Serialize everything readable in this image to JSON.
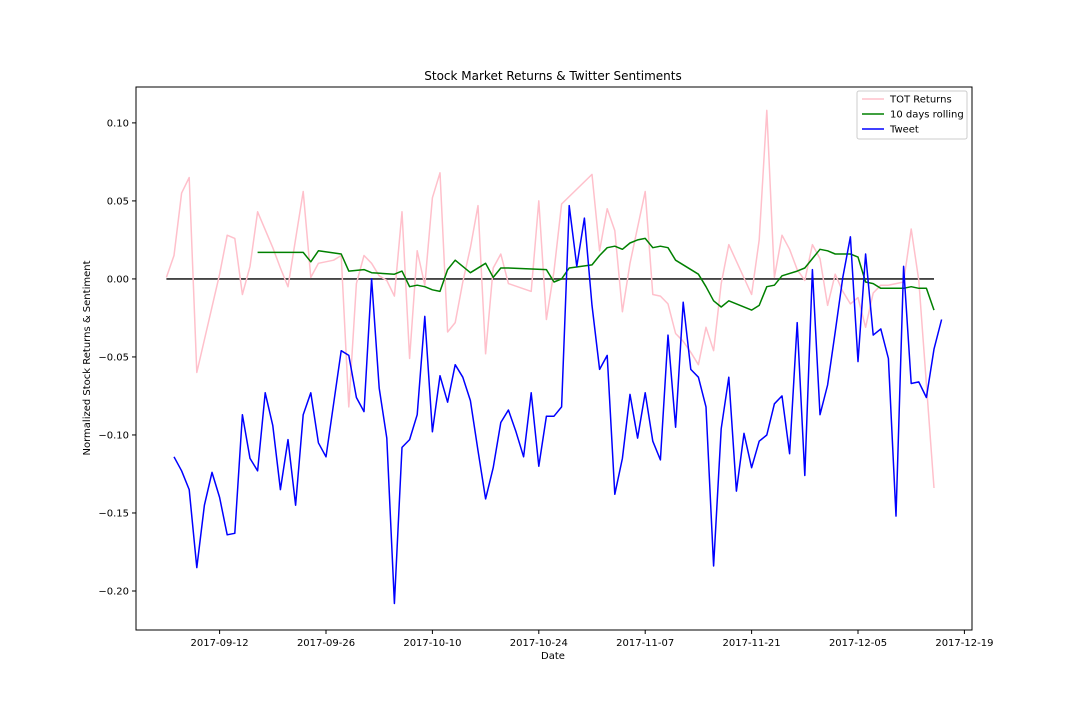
{
  "chart_data": {
    "type": "line",
    "title": "Stock Market Returns & Twitter Sentiments",
    "xlabel": "Date",
    "ylabel": "Normalized Stock Returns & Sentiment",
    "xlim": [
      "2017-09-01",
      "2017-12-20"
    ],
    "ylim": [
      -0.225,
      0.123
    ],
    "x_tick_labels": [
      "2017-09-12",
      "2017-09-26",
      "2017-10-10",
      "2017-10-24",
      "2017-11-07",
      "2017-11-21",
      "2017-12-05",
      "2017-12-19"
    ],
    "y_tick_values": [
      0.1,
      0.05,
      0.0,
      -0.05,
      -0.1,
      -0.15,
      -0.2
    ],
    "y_tick_labels": [
      "0.10",
      "0.05",
      "0.00",
      "−0.05",
      "−0.10",
      "−0.15",
      "−0.20"
    ],
    "grid": false,
    "legend_position": "top-right",
    "series": [
      {
        "name": "TOT Returns",
        "color": "#ffc0cb",
        "points": [
          [
            "2017-09-05",
            0.001
          ],
          [
            "2017-09-06",
            0.015
          ],
          [
            "2017-09-07",
            0.055
          ],
          [
            "2017-09-08",
            0.065
          ],
          [
            "2017-09-09",
            -0.06
          ],
          [
            "2017-09-12",
            0.003
          ],
          [
            "2017-09-13",
            0.028
          ],
          [
            "2017-09-14",
            0.026
          ],
          [
            "2017-09-15",
            -0.01
          ],
          [
            "2017-09-16",
            0.008
          ],
          [
            "2017-09-17",
            0.043
          ],
          [
            "2017-09-19",
            0.02
          ],
          [
            "2017-09-20",
            0.007
          ],
          [
            "2017-09-21",
            -0.005
          ],
          [
            "2017-09-23",
            0.056
          ],
          [
            "2017-09-24",
            0.001
          ],
          [
            "2017-09-25",
            0.01
          ],
          [
            "2017-09-27",
            0.012
          ],
          [
            "2017-09-28",
            0.015
          ],
          [
            "2017-09-29",
            -0.082
          ],
          [
            "2017-09-30",
            -0.003
          ],
          [
            "2017-10-01",
            0.015
          ],
          [
            "2017-10-02",
            0.01
          ],
          [
            "2017-10-03",
            0.002
          ],
          [
            "2017-10-04",
            -0.001
          ],
          [
            "2017-10-05",
            -0.011
          ],
          [
            "2017-10-06",
            0.043
          ],
          [
            "2017-10-07",
            -0.051
          ],
          [
            "2017-10-08",
            0.018
          ],
          [
            "2017-10-09",
            -0.004
          ],
          [
            "2017-10-10",
            0.052
          ],
          [
            "2017-10-11",
            0.068
          ],
          [
            "2017-10-12",
            -0.034
          ],
          [
            "2017-10-13",
            -0.028
          ],
          [
            "2017-10-14",
            -0.002
          ],
          [
            "2017-10-15",
            0.02
          ],
          [
            "2017-10-16",
            0.047
          ],
          [
            "2017-10-17",
            -0.048
          ],
          [
            "2017-10-18",
            0.007
          ],
          [
            "2017-10-19",
            0.016
          ],
          [
            "2017-10-20",
            -0.003
          ],
          [
            "2017-10-23",
            -0.008
          ],
          [
            "2017-10-24",
            0.05
          ],
          [
            "2017-10-25",
            -0.026
          ],
          [
            "2017-10-26",
            0.005
          ],
          [
            "2017-10-27",
            0.048
          ],
          [
            "2017-10-31",
            0.067
          ],
          [
            "2017-11-01",
            0.018
          ],
          [
            "2017-11-02",
            0.045
          ],
          [
            "2017-11-03",
            0.031
          ],
          [
            "2017-11-04",
            -0.021
          ],
          [
            "2017-11-05",
            0.01
          ],
          [
            "2017-11-07",
            0.056
          ],
          [
            "2017-11-08",
            -0.01
          ],
          [
            "2017-11-09",
            -0.011
          ],
          [
            "2017-11-10",
            -0.016
          ],
          [
            "2017-11-11",
            -0.035
          ],
          [
            "2017-11-12",
            -0.04
          ],
          [
            "2017-11-13",
            -0.047
          ],
          [
            "2017-11-14",
            -0.055
          ],
          [
            "2017-11-15",
            -0.031
          ],
          [
            "2017-11-16",
            -0.046
          ],
          [
            "2017-11-17",
            -0.003
          ],
          [
            "2017-11-18",
            0.022
          ],
          [
            "2017-11-21",
            -0.01
          ],
          [
            "2017-11-22",
            0.025
          ],
          [
            "2017-11-23",
            0.108
          ],
          [
            "2017-11-24",
            0.001
          ],
          [
            "2017-11-25",
            0.028
          ],
          [
            "2017-11-26",
            0.019
          ],
          [
            "2017-11-27",
            0.006
          ],
          [
            "2017-11-28",
            -0.001
          ],
          [
            "2017-11-29",
            0.022
          ],
          [
            "2017-11-30",
            0.013
          ],
          [
            "2017-12-01",
            -0.017
          ],
          [
            "2017-12-02",
            0.003
          ],
          [
            "2017-12-03",
            -0.008
          ],
          [
            "2017-12-04",
            -0.016
          ],
          [
            "2017-12-05",
            -0.012
          ],
          [
            "2017-12-06",
            -0.031
          ],
          [
            "2017-12-07",
            -0.009
          ],
          [
            "2017-12-08",
            -0.004
          ],
          [
            "2017-12-09",
            -0.004
          ],
          [
            "2017-12-10",
            -0.003
          ],
          [
            "2017-12-11",
            -0.002
          ],
          [
            "2017-12-12",
            0.032
          ],
          [
            "2017-12-13",
            -0.001
          ],
          [
            "2017-12-15",
            -0.134
          ]
        ]
      },
      {
        "name": "10 days rolling",
        "color": "#008000",
        "points": [
          [
            "2017-09-17",
            0.017
          ],
          [
            "2017-09-19",
            0.017
          ],
          [
            "2017-09-20",
            0.017
          ],
          [
            "2017-09-21",
            0.017
          ],
          [
            "2017-09-23",
            0.017
          ],
          [
            "2017-09-24",
            0.011
          ],
          [
            "2017-09-25",
            0.018
          ],
          [
            "2017-09-28",
            0.016
          ],
          [
            "2017-09-29",
            0.005
          ],
          [
            "2017-10-01",
            0.006
          ],
          [
            "2017-10-02",
            0.004
          ],
          [
            "2017-10-05",
            0.003
          ],
          [
            "2017-10-06",
            0.005
          ],
          [
            "2017-10-07",
            -0.005
          ],
          [
            "2017-10-08",
            -0.004
          ],
          [
            "2017-10-09",
            -0.005
          ],
          [
            "2017-10-10",
            -0.007
          ],
          [
            "2017-10-11",
            -0.008
          ],
          [
            "2017-10-12",
            0.006
          ],
          [
            "2017-10-13",
            0.012
          ],
          [
            "2017-10-14",
            0.008
          ],
          [
            "2017-10-15",
            0.004
          ],
          [
            "2017-10-17",
            0.01
          ],
          [
            "2017-10-18",
            0.001
          ],
          [
            "2017-10-19",
            0.007
          ],
          [
            "2017-10-20",
            0.007
          ],
          [
            "2017-10-25",
            0.006
          ],
          [
            "2017-10-26",
            -0.002
          ],
          [
            "2017-10-27",
            0.0
          ],
          [
            "2017-10-28",
            0.007
          ],
          [
            "2017-10-31",
            0.009
          ],
          [
            "2017-11-01",
            0.015
          ],
          [
            "2017-11-02",
            0.02
          ],
          [
            "2017-11-03",
            0.021
          ],
          [
            "2017-11-04",
            0.019
          ],
          [
            "2017-11-05",
            0.023
          ],
          [
            "2017-11-06",
            0.025
          ],
          [
            "2017-11-07",
            0.026
          ],
          [
            "2017-11-08",
            0.02
          ],
          [
            "2017-11-09",
            0.021
          ],
          [
            "2017-11-10",
            0.02
          ],
          [
            "2017-11-11",
            0.012
          ],
          [
            "2017-11-14",
            0.003
          ],
          [
            "2017-11-15",
            -0.005
          ],
          [
            "2017-11-16",
            -0.014
          ],
          [
            "2017-11-17",
            -0.018
          ],
          [
            "2017-11-18",
            -0.014
          ],
          [
            "2017-11-21",
            -0.02
          ],
          [
            "2017-11-22",
            -0.017
          ],
          [
            "2017-11-23",
            -0.005
          ],
          [
            "2017-11-24",
            -0.004
          ],
          [
            "2017-11-25",
            0.002
          ],
          [
            "2017-11-27",
            0.005
          ],
          [
            "2017-11-28",
            0.007
          ],
          [
            "2017-11-29",
            0.013
          ],
          [
            "2017-11-30",
            0.019
          ],
          [
            "2017-12-01",
            0.018
          ],
          [
            "2017-12-02",
            0.016
          ],
          [
            "2017-12-04",
            0.016
          ],
          [
            "2017-12-05",
            0.014
          ],
          [
            "2017-12-06",
            -0.002
          ],
          [
            "2017-12-07",
            -0.003
          ],
          [
            "2017-12-08",
            -0.006
          ],
          [
            "2017-12-10",
            -0.006
          ],
          [
            "2017-12-11",
            -0.006
          ],
          [
            "2017-12-12",
            -0.005
          ],
          [
            "2017-12-13",
            -0.006
          ],
          [
            "2017-12-14",
            -0.006
          ],
          [
            "2017-12-15",
            -0.02
          ]
        ]
      },
      {
        "name": "Tweet",
        "color": "#0000ff",
        "points": [
          [
            "2017-09-06",
            -0.114
          ],
          [
            "2017-09-07",
            -0.123
          ],
          [
            "2017-09-08",
            -0.135
          ],
          [
            "2017-09-09",
            -0.185
          ],
          [
            "2017-09-10",
            -0.145
          ],
          [
            "2017-09-11",
            -0.124
          ],
          [
            "2017-09-12",
            -0.14
          ],
          [
            "2017-09-13",
            -0.164
          ],
          [
            "2017-09-14",
            -0.163
          ],
          [
            "2017-09-15",
            -0.087
          ],
          [
            "2017-09-16",
            -0.115
          ],
          [
            "2017-09-17",
            -0.123
          ],
          [
            "2017-09-18",
            -0.073
          ],
          [
            "2017-09-19",
            -0.094
          ],
          [
            "2017-09-20",
            -0.135
          ],
          [
            "2017-09-21",
            -0.103
          ],
          [
            "2017-09-22",
            -0.145
          ],
          [
            "2017-09-23",
            -0.087
          ],
          [
            "2017-09-24",
            -0.073
          ],
          [
            "2017-09-25",
            -0.105
          ],
          [
            "2017-09-26",
            -0.114
          ],
          [
            "2017-09-27",
            -0.08
          ],
          [
            "2017-09-28",
            -0.046
          ],
          [
            "2017-09-29",
            -0.049
          ],
          [
            "2017-09-30",
            -0.076
          ],
          [
            "2017-10-01",
            -0.085
          ],
          [
            "2017-10-02",
            0.0
          ],
          [
            "2017-10-03",
            -0.07
          ],
          [
            "2017-10-04",
            -0.102
          ],
          [
            "2017-10-05",
            -0.208
          ],
          [
            "2017-10-06",
            -0.108
          ],
          [
            "2017-10-07",
            -0.103
          ],
          [
            "2017-10-08",
            -0.087
          ],
          [
            "2017-10-09",
            -0.024
          ],
          [
            "2017-10-10",
            -0.098
          ],
          [
            "2017-10-11",
            -0.062
          ],
          [
            "2017-10-12",
            -0.079
          ],
          [
            "2017-10-13",
            -0.055
          ],
          [
            "2017-10-14",
            -0.063
          ],
          [
            "2017-10-15",
            -0.078
          ],
          [
            "2017-10-16",
            -0.11
          ],
          [
            "2017-10-17",
            -0.141
          ],
          [
            "2017-10-18",
            -0.121
          ],
          [
            "2017-10-19",
            -0.092
          ],
          [
            "2017-10-20",
            -0.084
          ],
          [
            "2017-10-21",
            -0.098
          ],
          [
            "2017-10-22",
            -0.114
          ],
          [
            "2017-10-23",
            -0.073
          ],
          [
            "2017-10-24",
            -0.12
          ],
          [
            "2017-10-25",
            -0.088
          ],
          [
            "2017-10-26",
            -0.088
          ],
          [
            "2017-10-27",
            -0.082
          ],
          [
            "2017-10-28",
            0.047
          ],
          [
            "2017-10-29",
            0.008
          ],
          [
            "2017-10-30",
            0.039
          ],
          [
            "2017-10-31",
            -0.017
          ],
          [
            "2017-11-01",
            -0.058
          ],
          [
            "2017-11-02",
            -0.049
          ],
          [
            "2017-11-03",
            -0.138
          ],
          [
            "2017-11-04",
            -0.115
          ],
          [
            "2017-11-05",
            -0.074
          ],
          [
            "2017-11-06",
            -0.102
          ],
          [
            "2017-11-07",
            -0.073
          ],
          [
            "2017-11-08",
            -0.104
          ],
          [
            "2017-11-09",
            -0.116
          ],
          [
            "2017-11-10",
            -0.036
          ],
          [
            "2017-11-11",
            -0.095
          ],
          [
            "2017-11-12",
            -0.015
          ],
          [
            "2017-11-13",
            -0.058
          ],
          [
            "2017-11-14",
            -0.063
          ],
          [
            "2017-11-15",
            -0.082
          ],
          [
            "2017-11-16",
            -0.184
          ],
          [
            "2017-11-17",
            -0.096
          ],
          [
            "2017-11-18",
            -0.063
          ],
          [
            "2017-11-19",
            -0.136
          ],
          [
            "2017-11-20",
            -0.099
          ],
          [
            "2017-11-21",
            -0.121
          ],
          [
            "2017-11-22",
            -0.104
          ],
          [
            "2017-11-23",
            -0.1
          ],
          [
            "2017-11-24",
            -0.08
          ],
          [
            "2017-11-25",
            -0.075
          ],
          [
            "2017-11-26",
            -0.112
          ],
          [
            "2017-11-27",
            -0.028
          ],
          [
            "2017-11-28",
            -0.126
          ],
          [
            "2017-11-29",
            0.006
          ],
          [
            "2017-11-30",
            -0.087
          ],
          [
            "2017-12-01",
            -0.068
          ],
          [
            "2017-12-02",
            -0.034
          ],
          [
            "2017-12-03",
            0.001
          ],
          [
            "2017-12-04",
            0.027
          ],
          [
            "2017-12-05",
            -0.053
          ],
          [
            "2017-12-06",
            0.016
          ],
          [
            "2017-12-07",
            -0.036
          ],
          [
            "2017-12-08",
            -0.032
          ],
          [
            "2017-12-09",
            -0.051
          ],
          [
            "2017-12-10",
            -0.152
          ],
          [
            "2017-12-11",
            0.008
          ],
          [
            "2017-12-12",
            -0.067
          ],
          [
            "2017-12-13",
            -0.066
          ],
          [
            "2017-12-14",
            -0.076
          ],
          [
            "2017-12-15",
            -0.045
          ],
          [
            "2017-12-16",
            -0.026
          ]
        ]
      }
    ],
    "reference_line": {
      "y": 0.0,
      "color": "#444444"
    }
  }
}
